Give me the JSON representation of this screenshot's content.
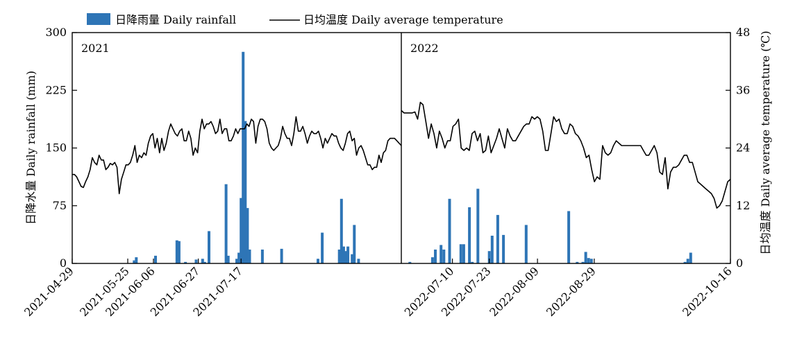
{
  "chart_data": {
    "type": "bar+line",
    "legend": {
      "placement": "top",
      "rain_label": "日降雨量 Daily rainfall",
      "temp_label": "日均温度 Daily average temperature"
    },
    "y_left": {
      "label": "日降水量 Daily rainfall (mm)",
      "ylim": [
        0,
        300
      ],
      "ticks": [
        0,
        75,
        150,
        225,
        300
      ]
    },
    "y_right": {
      "label": "日均温度 Daily average temperature (℃)",
      "ylim": [
        0,
        48
      ],
      "ticks": [
        0,
        12,
        24,
        36,
        48
      ]
    },
    "panels": [
      {
        "label": "2021",
        "start_date": "2021-04-29",
        "end_date": "2021-09-30",
        "x_tick_labels": [
          "2021-04-29",
          "2021-05-25",
          "2021-06-06",
          "2021-06-27",
          "2021-07-17"
        ],
        "rain_date_labels": [
          "2021-05-28",
          "2021-05-29",
          "2021-06-07",
          "2021-06-17",
          "2021-06-18",
          "2021-06-21",
          "2021-06-26",
          "2021-06-29",
          "2021-06-30",
          "2021-07-02",
          "2021-07-10",
          "2021-07-11",
          "2021-07-15",
          "2021-07-16",
          "2021-07-17",
          "2021-07-18",
          "2021-07-19",
          "2021-07-20",
          "2021-07-21",
          "2021-07-27",
          "2021-08-05",
          "2021-08-22",
          "2021-08-24",
          "2021-09-01",
          "2021-09-02",
          "2021-09-03",
          "2021-09-04",
          "2021-09-05",
          "2021-09-07",
          "2021-09-08",
          "2021-09-10"
        ],
        "rain_values": [
          4,
          8,
          10,
          30,
          29,
          2,
          5,
          6,
          2,
          42,
          103,
          10,
          6,
          14,
          85,
          275,
          185,
          72,
          18,
          18,
          19,
          6,
          40,
          18,
          84,
          22,
          16,
          22,
          12,
          50,
          6
        ],
        "temp_values": [
          18.5,
          18.5,
          18.0,
          17.0,
          16.0,
          15.8,
          17.0,
          18.0,
          19.5,
          22.0,
          21.0,
          20.5,
          22.5,
          21.5,
          21.5,
          19.5,
          20.0,
          20.8,
          20.5,
          21.0,
          20.0,
          14.5,
          17.5,
          19.0,
          20.5,
          20.5,
          21.0,
          22.5,
          24.5,
          21.0,
          22.5,
          22.0,
          23.0,
          22.5,
          25.0,
          26.5,
          27.0,
          24.0,
          26.0,
          23.0,
          26.0,
          23.5,
          25.0,
          27.5,
          29.0,
          28.0,
          27.0,
          26.5,
          27.5,
          28.0,
          25.5,
          25.5,
          27.5,
          26.0,
          22.5,
          24.0,
          23.0,
          27.5,
          30.0,
          28.0,
          29.0,
          29.0,
          29.5,
          28.5,
          27.0,
          27.5,
          30.0,
          27.0,
          28.0,
          28.0,
          25.5,
          25.5,
          26.5,
          28.0,
          27.0,
          28.0,
          28.0,
          28.0,
          29.0,
          28.5,
          30.0,
          29.5,
          25.0,
          28.5,
          30.0,
          30.0,
          29.5,
          28.0,
          25.0,
          24.0,
          23.5,
          24.0,
          24.5,
          26.0,
          28.5,
          27.0,
          26.0,
          26.0,
          24.5,
          27.0,
          30.5,
          27.5,
          27.5,
          28.5,
          27.0,
          25.0,
          26.5,
          27.5,
          27.0,
          27.0,
          27.5,
          26.0,
          24.0,
          26.0,
          25.0,
          26.0,
          27.0,
          26.5,
          26.5,
          25.0,
          24.0,
          23.5,
          25.0,
          27.0,
          27.5,
          25.5,
          26.0,
          22.5,
          24.0,
          24.5,
          23.5,
          22.0,
          20.5,
          20.5,
          19.5,
          20.0,
          20.0,
          22.5,
          21.0,
          23.0,
          23.5,
          25.5,
          26.0,
          26.0,
          26.0,
          25.5,
          25.0,
          24.5
        ]
      },
      {
        "label": "2022",
        "start_date": "2022-06-22",
        "end_date": "2022-10-16",
        "x_tick_labels": [
          "2022-07-10",
          "2022-07-23",
          "2022-08-09",
          "2022-08-29",
          "2022-10-16"
        ],
        "rain_date_labels": [
          "2022-06-25",
          "2022-07-03",
          "2022-07-04",
          "2022-07-06",
          "2022-07-07",
          "2022-07-09",
          "2022-07-13",
          "2022-07-14",
          "2022-07-16",
          "2022-07-17",
          "2022-07-19",
          "2022-07-23",
          "2022-07-24",
          "2022-07-26",
          "2022-07-28",
          "2022-08-05",
          "2022-08-20",
          "2022-08-23",
          "2022-08-25",
          "2022-08-26",
          "2022-08-27",
          "2022-08-28",
          "2022-09-30",
          "2022-10-01",
          "2022-10-02"
        ],
        "rain_values": [
          2,
          8,
          18,
          24,
          18,
          84,
          25,
          25,
          73,
          2,
          97,
          16,
          36,
          63,
          37,
          50,
          68,
          2,
          2,
          15,
          7,
          6,
          2,
          6,
          14
        ],
        "temp_values": [
          31.8,
          31.3,
          31.3,
          31.3,
          31.3,
          31.5,
          30.0,
          33.5,
          33.0,
          29.5,
          26.0,
          29.0,
          27.0,
          24.0,
          27.5,
          26.0,
          24.0,
          25.5,
          25.5,
          28.5,
          29.0,
          30.0,
          24.0,
          23.5,
          24.0,
          23.5,
          27.0,
          27.5,
          25.5,
          27.0,
          23.0,
          23.5,
          26.5,
          23.0,
          24.5,
          26.0,
          28.0,
          26.0,
          24.0,
          28.0,
          26.5,
          25.5,
          25.5,
          26.5,
          27.5,
          28.5,
          29.0,
          29.0,
          30.5,
          30.0,
          30.5,
          30.0,
          27.5,
          23.5,
          23.5,
          27.0,
          30.5,
          29.5,
          30.0,
          28.0,
          27.0,
          27.0,
          29.0,
          28.5,
          27.0,
          26.5,
          25.5,
          24.0,
          22.0,
          22.5,
          19.5,
          17.0,
          18.0,
          17.5,
          24.5,
          23.0,
          22.5,
          23.0,
          24.5,
          25.5,
          25.0,
          24.5,
          24.5,
          24.5,
          24.5,
          24.5,
          24.5,
          24.5,
          24.5,
          23.5,
          22.5,
          22.5,
          23.5,
          24.5,
          23.0,
          19.0,
          18.5,
          22.0,
          15.5,
          19.0,
          20.0,
          20.0,
          20.5,
          21.5,
          22.5,
          22.5,
          21.0,
          21.0,
          19.0,
          17.0,
          16.5,
          16.0,
          15.5,
          15.0,
          14.5,
          13.5,
          11.5,
          12.0,
          13.0,
          15.0,
          17.0,
          17.5
        ]
      }
    ]
  }
}
